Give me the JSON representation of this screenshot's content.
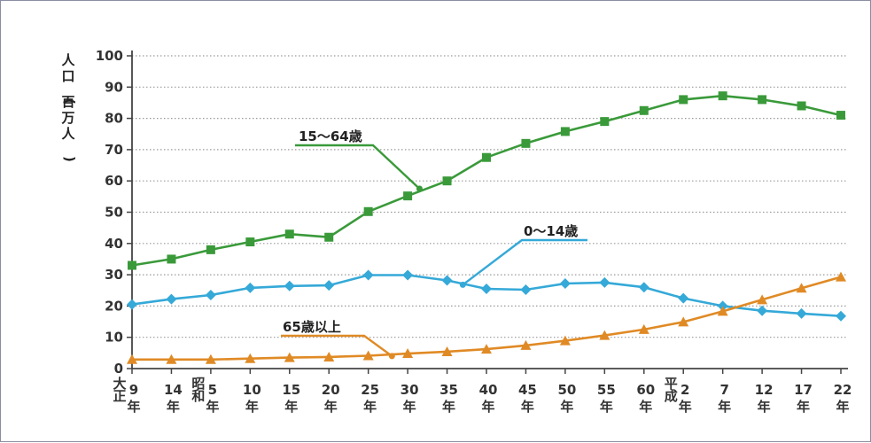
{
  "chart_data": {
    "type": "line",
    "ylabel": "人口(百万人)",
    "ylim": [
      0,
      100
    ],
    "yticks": [
      0,
      10,
      20,
      30,
      40,
      50,
      60,
      70,
      80,
      90,
      100
    ],
    "grid": true,
    "categories": [
      {
        "era": "大正",
        "num": "9",
        "unit": "年"
      },
      {
        "era": "",
        "num": "14",
        "unit": "年"
      },
      {
        "era": "昭和",
        "num": "5",
        "unit": "年"
      },
      {
        "era": "",
        "num": "10",
        "unit": "年"
      },
      {
        "era": "",
        "num": "15",
        "unit": "年"
      },
      {
        "era": "",
        "num": "20",
        "unit": "年"
      },
      {
        "era": "",
        "num": "25",
        "unit": "年"
      },
      {
        "era": "",
        "num": "30",
        "unit": "年"
      },
      {
        "era": "",
        "num": "35",
        "unit": "年"
      },
      {
        "era": "",
        "num": "40",
        "unit": "年"
      },
      {
        "era": "",
        "num": "45",
        "unit": "年"
      },
      {
        "era": "",
        "num": "50",
        "unit": "年"
      },
      {
        "era": "",
        "num": "55",
        "unit": "年"
      },
      {
        "era": "",
        "num": "60",
        "unit": "年"
      },
      {
        "era": "平成",
        "num": "2",
        "unit": "年"
      },
      {
        "era": "",
        "num": "7",
        "unit": "年"
      },
      {
        "era": "",
        "num": "12",
        "unit": "年"
      },
      {
        "era": "",
        "num": "17",
        "unit": "年"
      },
      {
        "era": "",
        "num": "22",
        "unit": "年"
      }
    ],
    "series": [
      {
        "name": "15〜64歳",
        "color": "#3a9a3a",
        "marker": "square",
        "values": [
          33.0,
          35.0,
          38.0,
          40.5,
          43.0,
          42.0,
          50.2,
          55.2,
          60.0,
          67.5,
          72.0,
          75.8,
          79.0,
          82.5,
          86.0,
          87.2,
          86.0,
          84.0,
          81.0
        ]
      },
      {
        "name": "0〜14歳",
        "color": "#35a9d8",
        "marker": "diamond",
        "values": [
          20.5,
          22.2,
          23.5,
          25.8,
          26.4,
          26.6,
          29.9,
          29.9,
          28.2,
          25.5,
          25.2,
          27.2,
          27.5,
          26.0,
          22.5,
          20.0,
          18.5,
          17.6,
          16.8
        ]
      },
      {
        "name": "65歳以上",
        "color": "#e08a25",
        "marker": "triangle",
        "values": [
          2.9,
          2.9,
          2.9,
          3.2,
          3.5,
          3.7,
          4.1,
          4.8,
          5.4,
          6.2,
          7.4,
          8.9,
          10.6,
          12.5,
          14.9,
          18.3,
          22.0,
          25.7,
          29.3
        ]
      }
    ],
    "annotations": [
      {
        "series": 0,
        "text": "15〜64歳"
      },
      {
        "series": 1,
        "text": "0〜14歳"
      },
      {
        "series": 2,
        "text": "65歳以上"
      }
    ]
  }
}
